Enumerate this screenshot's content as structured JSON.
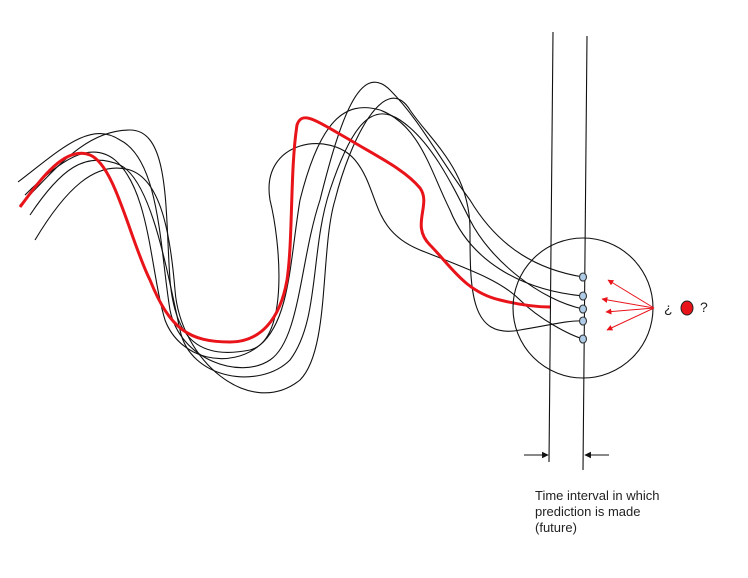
{
  "caption": {
    "line1": "Time interval in which",
    "line2": "prediction is made",
    "line3": "(future)"
  },
  "question": {
    "open": "¿",
    "close": "?"
  },
  "colors": {
    "highlight": "#e8141a",
    "lines": "#111111",
    "dots": "#aecbe8"
  }
}
